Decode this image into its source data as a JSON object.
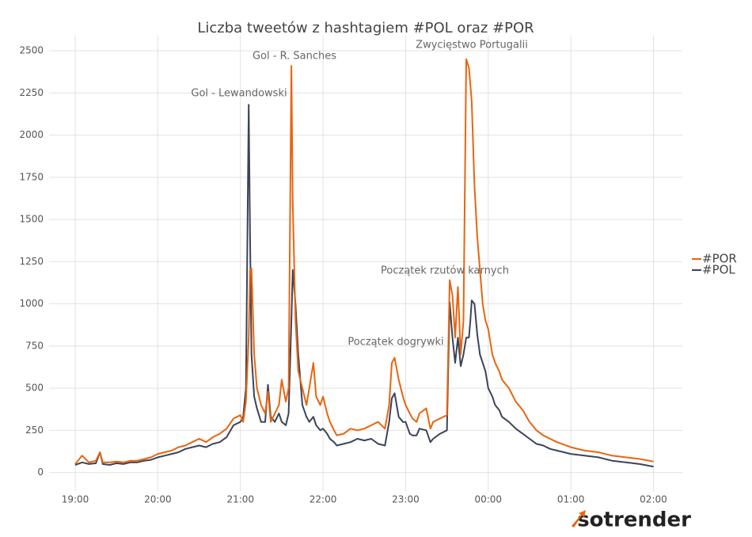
{
  "chart_data": {
    "type": "line",
    "title": "Liczba tweetów z hashtagiem #POL oraz #POR",
    "x": [
      "19:00",
      "19:05",
      "19:10",
      "19:15",
      "19:18",
      "19:20",
      "19:25",
      "19:30",
      "19:35",
      "19:40",
      "19:45",
      "19:50",
      "19:55",
      "20:00",
      "20:05",
      "20:10",
      "20:15",
      "20:20",
      "20:25",
      "20:30",
      "20:35",
      "20:40",
      "20:45",
      "20:50",
      "20:55",
      "21:00",
      "21:02",
      "21:04",
      "21:06",
      "21:07",
      "21:08",
      "21:10",
      "21:12",
      "21:15",
      "21:18",
      "21:20",
      "21:22",
      "21:25",
      "21:28",
      "21:30",
      "21:33",
      "21:35",
      "21:37",
      "21:38",
      "21:40",
      "21:42",
      "21:45",
      "21:48",
      "21:50",
      "21:53",
      "21:55",
      "21:58",
      "22:00",
      "22:03",
      "22:05",
      "22:08",
      "22:10",
      "22:15",
      "22:20",
      "22:25",
      "22:30",
      "22:35",
      "22:40",
      "22:45",
      "22:48",
      "22:50",
      "22:52",
      "22:55",
      "22:58",
      "23:00",
      "23:03",
      "23:05",
      "23:08",
      "23:10",
      "23:15",
      "23:18",
      "23:20",
      "23:25",
      "23:30",
      "23:32",
      "23:34",
      "23:36",
      "23:38",
      "23:40",
      "23:42",
      "23:44",
      "23:46",
      "23:47",
      "23:48",
      "23:50",
      "23:52",
      "23:54",
      "23:56",
      "23:58",
      "00:00",
      "00:03",
      "00:05",
      "00:08",
      "00:10",
      "00:15",
      "00:20",
      "00:25",
      "00:30",
      "00:35",
      "00:40",
      "00:45",
      "00:50",
      "01:00",
      "01:10",
      "01:20",
      "01:30",
      "01:40",
      "01:50",
      "02:00"
    ],
    "series": [
      {
        "name": "#POR",
        "color": "#e8650f",
        "values": [
          50,
          100,
          60,
          70,
          120,
          60,
          60,
          65,
          60,
          70,
          70,
          80,
          90,
          110,
          120,
          130,
          150,
          160,
          180,
          200,
          180,
          210,
          230,
          260,
          320,
          340,
          300,
          420,
          800,
          1200,
          1210,
          700,
          500,
          400,
          350,
          480,
          300,
          350,
          400,
          550,
          420,
          500,
          2410,
          1600,
          900,
          600,
          500,
          400,
          500,
          650,
          450,
          400,
          450,
          350,
          300,
          250,
          220,
          230,
          260,
          250,
          260,
          280,
          300,
          260,
          400,
          650,
          680,
          550,
          450,
          400,
          350,
          320,
          300,
          350,
          380,
          260,
          300,
          320,
          340,
          1140,
          1050,
          800,
          1100,
          700,
          900,
          2450,
          2400,
          2300,
          2200,
          1700,
          1400,
          1200,
          1000,
          900,
          850,
          700,
          650,
          600,
          550,
          500,
          420,
          370,
          300,
          250,
          220,
          200,
          180,
          150,
          130,
          120,
          100,
          90,
          80,
          65
        ]
      },
      {
        "name": "#POL",
        "color": "#3a4459",
        "values": [
          45,
          60,
          50,
          55,
          120,
          50,
          45,
          55,
          50,
          60,
          60,
          70,
          75,
          90,
          100,
          110,
          120,
          140,
          150,
          160,
          150,
          170,
          180,
          210,
          280,
          300,
          330,
          500,
          2180,
          1400,
          700,
          450,
          380,
          300,
          300,
          520,
          330,
          300,
          350,
          300,
          280,
          350,
          900,
          1200,
          1000,
          700,
          400,
          330,
          300,
          330,
          280,
          250,
          260,
          230,
          200,
          180,
          160,
          170,
          180,
          200,
          190,
          200,
          170,
          160,
          300,
          440,
          470,
          330,
          300,
          300,
          230,
          220,
          220,
          260,
          250,
          180,
          200,
          230,
          250,
          1010,
          800,
          650,
          800,
          630,
          700,
          800,
          800,
          900,
          1020,
          1000,
          820,
          700,
          650,
          600,
          500,
          450,
          400,
          370,
          330,
          300,
          260,
          230,
          200,
          170,
          160,
          140,
          130,
          110,
          100,
          90,
          70,
          60,
          50,
          35
        ]
      }
    ],
    "xlim": [
      "18:41",
      "02:21"
    ],
    "xticks": [
      "19:00",
      "20:00",
      "21:00",
      "22:00",
      "23:00",
      "00:00",
      "01:00",
      "02:00"
    ],
    "ylim": [
      -110,
      2590
    ],
    "yticks": [
      0,
      250,
      500,
      750,
      1000,
      1250,
      1500,
      1750,
      2000,
      2250,
      2500
    ],
    "grid": true,
    "annotations": [
      "Gol - Lewandowski",
      "Gol - R. Sanches",
      "Zwycięstwo Portugalii",
      "Początek rzutów karnych",
      "Początek dogrywki"
    ],
    "logo": "sotrender"
  }
}
